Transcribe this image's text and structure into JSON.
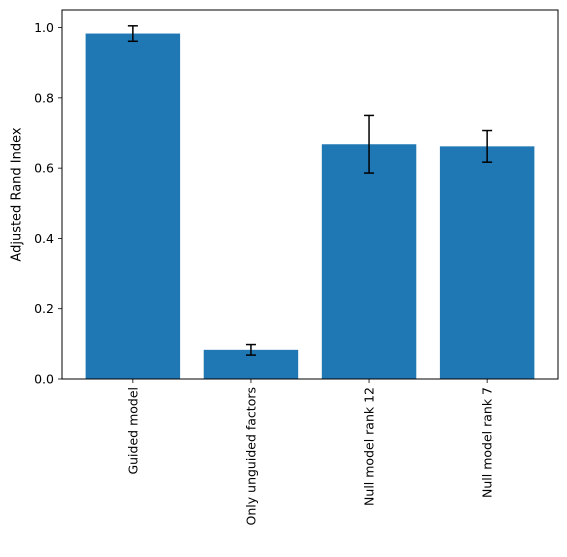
{
  "chart_data": {
    "type": "bar",
    "categories": [
      "Guided model",
      "Only unguided factors",
      "Null model rank 12",
      "Null model rank 7"
    ],
    "values": [
      0.983,
      0.083,
      0.668,
      0.662
    ],
    "errors": [
      0.022,
      0.015,
      0.082,
      0.045
    ],
    "title": "",
    "xlabel": "",
    "ylabel": "Adjusted Rand Index",
    "ylim": [
      0,
      1.05
    ],
    "yticks": [
      0.0,
      0.2,
      0.4,
      0.6,
      0.8,
      1.0
    ],
    "ytick_labels": [
      "0.0",
      "0.2",
      "0.4",
      "0.6",
      "0.8",
      "1.0"
    ],
    "grid": false,
    "legend": "none",
    "bar_color": "#1f77b4",
    "error_color": "#000000"
  }
}
